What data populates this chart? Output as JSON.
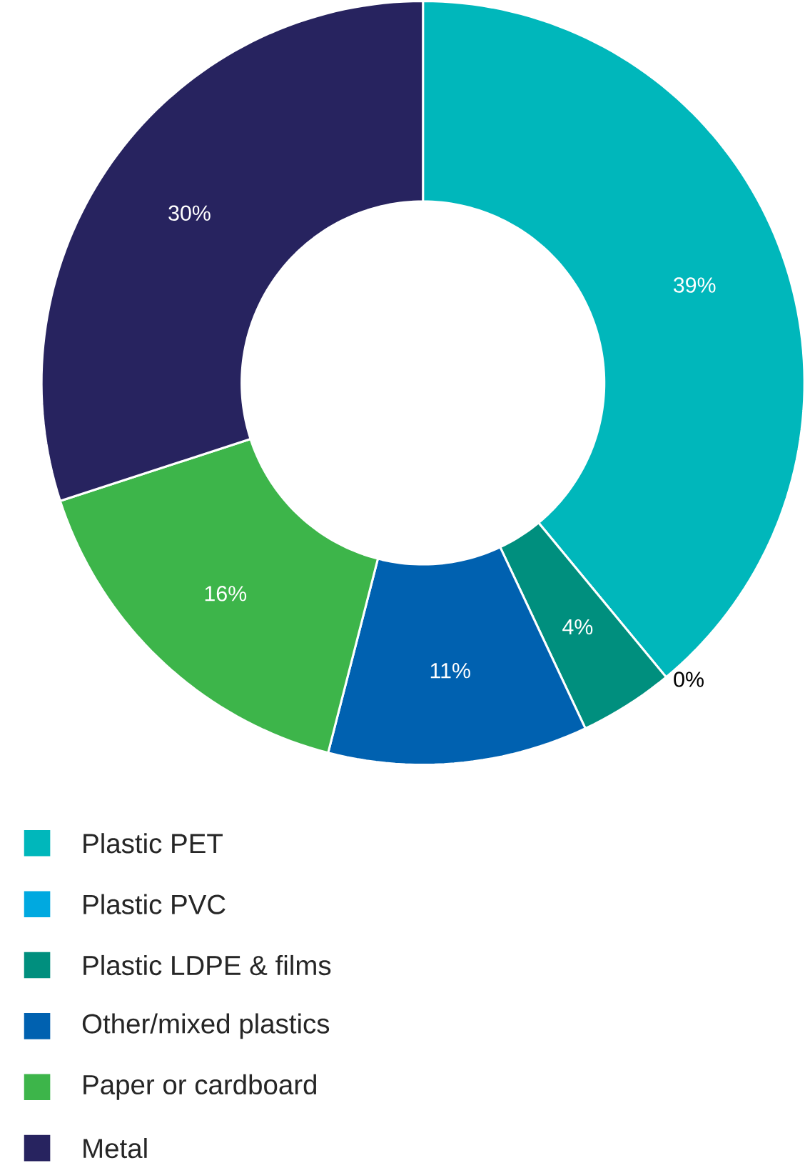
{
  "chart_data": {
    "type": "donut",
    "categories": [
      "Plastic PET",
      "Plastic PVC",
      "Plastic LDPE & films",
      "Other/mixed plastics",
      "Paper or cardboard",
      "Metal"
    ],
    "values": [
      39,
      0,
      4,
      11,
      16,
      30
    ],
    "colors": [
      "#00b7bb",
      "#00a9e0",
      "#008f7e",
      "#0061b0",
      "#3db54a",
      "#27235f"
    ],
    "value_labels": [
      "39%",
      "0%",
      "4%",
      "11%",
      "16%",
      "30%"
    ],
    "legend": "bottom"
  }
}
